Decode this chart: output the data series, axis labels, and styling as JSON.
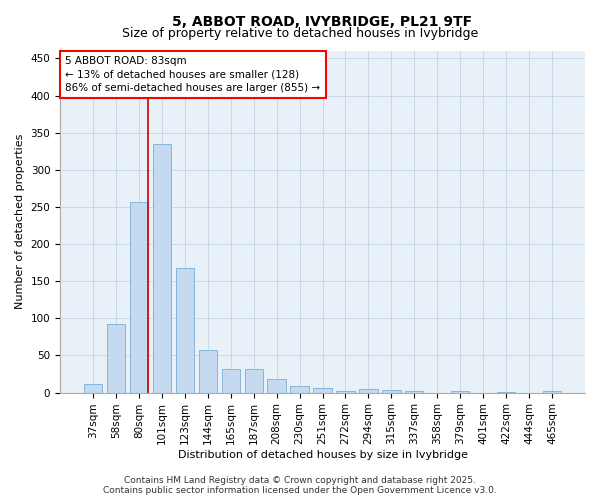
{
  "title": "5, ABBOT ROAD, IVYBRIDGE, PL21 9TF",
  "subtitle": "Size of property relative to detached houses in Ivybridge",
  "xlabel": "Distribution of detached houses by size in Ivybridge",
  "ylabel": "Number of detached properties",
  "categories": [
    "37sqm",
    "58sqm",
    "80sqm",
    "101sqm",
    "123sqm",
    "144sqm",
    "165sqm",
    "187sqm",
    "208sqm",
    "230sqm",
    "251sqm",
    "272sqm",
    "294sqm",
    "315sqm",
    "337sqm",
    "358sqm",
    "379sqm",
    "401sqm",
    "422sqm",
    "444sqm",
    "465sqm"
  ],
  "values": [
    12,
    93,
    257,
    335,
    168,
    57,
    32,
    32,
    18,
    9,
    6,
    2,
    5,
    4,
    2,
    0,
    2,
    0,
    1,
    0,
    2
  ],
  "bar_color": "#c5d9f0",
  "bar_edge_color": "#7aafd4",
  "grid_color": "#c8d8e8",
  "background_color": "#e8f0f8",
  "vline_color": "#cc0000",
  "annotation_text_line1": "5 ABBOT ROAD: 83sqm",
  "annotation_text_line2": "← 13% of detached houses are smaller (128)",
  "annotation_text_line3": "86% of semi-detached houses are larger (855) →",
  "ylim": [
    0,
    460
  ],
  "yticks": [
    0,
    50,
    100,
    150,
    200,
    250,
    300,
    350,
    400,
    450
  ],
  "title_fontsize": 10,
  "subtitle_fontsize": 9,
  "axis_label_fontsize": 8,
  "tick_fontsize": 7.5,
  "annotation_fontsize": 7.5,
  "footer_fontsize": 6.5,
  "footer_line1": "Contains HM Land Registry data © Crown copyright and database right 2025.",
  "footer_line2": "Contains public sector information licensed under the Open Government Licence v3.0."
}
